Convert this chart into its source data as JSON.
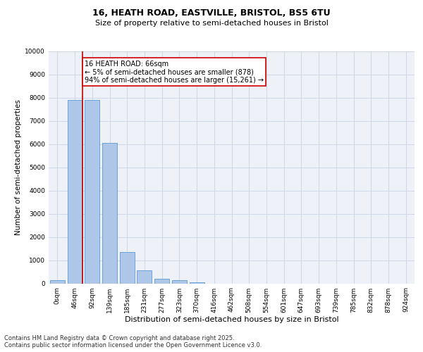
{
  "title_line1": "16, HEATH ROAD, EASTVILLE, BRISTOL, BS5 6TU",
  "title_line2": "Size of property relative to semi-detached houses in Bristol",
  "xlabel": "Distribution of semi-detached houses by size in Bristol",
  "ylabel": "Number of semi-detached properties",
  "categories": [
    "0sqm",
    "46sqm",
    "92sqm",
    "139sqm",
    "185sqm",
    "231sqm",
    "277sqm",
    "323sqm",
    "370sqm",
    "416sqm",
    "462sqm",
    "508sqm",
    "554sqm",
    "601sqm",
    "647sqm",
    "693sqm",
    "739sqm",
    "785sqm",
    "832sqm",
    "878sqm",
    "924sqm"
  ],
  "bar_values": [
    150,
    7900,
    7900,
    6050,
    1350,
    550,
    200,
    150,
    60,
    0,
    0,
    0,
    0,
    0,
    0,
    0,
    0,
    0,
    0,
    0,
    0
  ],
  "bar_color": "#aec6e8",
  "bar_edge_color": "#5b9bd5",
  "grid_color": "#d0d8e8",
  "annotation_text": "16 HEATH ROAD: 66sqm\n← 5% of semi-detached houses are smaller (878)\n94% of semi-detached houses are larger (15,261) →",
  "vline_x": 1.44,
  "vline_color": "#cc0000",
  "annotation_box_color": "#ffffff",
  "annotation_box_edge": "#cc0000",
  "ylim": [
    0,
    10000
  ],
  "yticks": [
    0,
    1000,
    2000,
    3000,
    4000,
    5000,
    6000,
    7000,
    8000,
    9000,
    10000
  ],
  "footnote": "Contains HM Land Registry data © Crown copyright and database right 2025.\nContains public sector information licensed under the Open Government Licence v3.0.",
  "bg_color": "#eef2f8",
  "title1_fontsize": 9,
  "title2_fontsize": 8,
  "xlabel_fontsize": 8,
  "ylabel_fontsize": 7.5,
  "tick_fontsize": 6.5,
  "annot_fontsize": 7,
  "footnote_fontsize": 6
}
